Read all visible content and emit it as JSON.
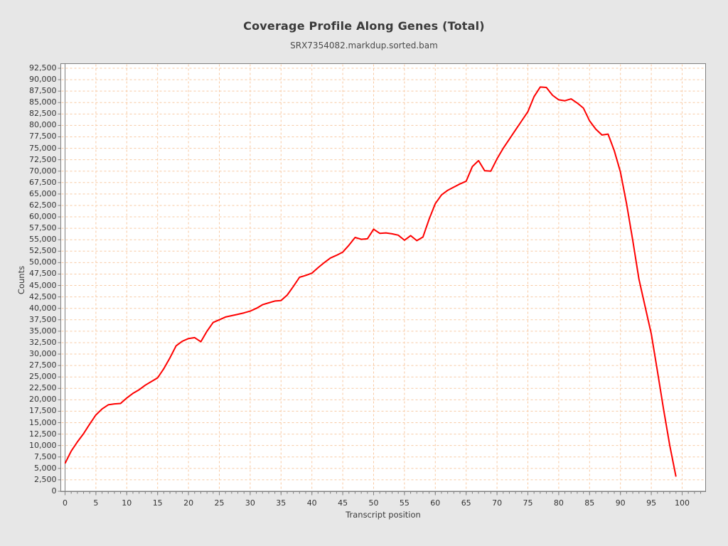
{
  "header": {
    "title": "Coverage Profile Along Genes (Total)",
    "subtitle": "SRX7354082.markdup.sorted.bam"
  },
  "colors": {
    "page_background": "#e7e7e7",
    "plot_background": "#ffffff",
    "plot_border": "#7f7f7f",
    "grid": "#f8c9a2",
    "line": "#fe0000",
    "text": "#3a3a3a"
  },
  "chart_data": {
    "type": "line",
    "title": "Coverage Profile Along Genes (Total)",
    "subtitle": "SRX7354082.markdup.sorted.bam",
    "xlabel": "Transcript position",
    "ylabel": "Counts",
    "xlim": [
      0,
      104
    ],
    "ylim": [
      0,
      93500
    ],
    "grid": {
      "on": true,
      "style": "dashed",
      "color": "#f8c9a2"
    },
    "legend_position": "none",
    "x_ticks": [
      0,
      5,
      10,
      15,
      20,
      25,
      30,
      35,
      40,
      45,
      50,
      55,
      60,
      65,
      70,
      75,
      80,
      85,
      90,
      95,
      100
    ],
    "y_ticks": [
      0,
      2500,
      5000,
      7500,
      10000,
      12500,
      15000,
      17500,
      20000,
      22500,
      25000,
      27500,
      30000,
      32500,
      35000,
      37500,
      40000,
      42500,
      45000,
      47500,
      50000,
      52500,
      55000,
      57500,
      60000,
      62500,
      65000,
      67500,
      70000,
      72500,
      75000,
      77500,
      80000,
      82500,
      85000,
      87500,
      90000,
      92500
    ],
    "y_tick_labels": [
      "0",
      "2,500",
      "5,000",
      "7,500",
      "10,000",
      "12,500",
      "15,000",
      "17,500",
      "20,000",
      "22,500",
      "25,000",
      "27,500",
      "30,000",
      "32,500",
      "35,000",
      "37,500",
      "40,000",
      "42,500",
      "45,000",
      "47,500",
      "50,000",
      "52,500",
      "55,000",
      "57,500",
      "60,000",
      "62,500",
      "65,000",
      "67,500",
      "70,000",
      "72,500",
      "75,000",
      "77,500",
      "80,000",
      "82,500",
      "85,000",
      "87,500",
      "90,000",
      "92,500"
    ],
    "series": [
      {
        "name": "SRX7354082.markdup.sorted.bam",
        "color": "#fe0000",
        "x": [
          0,
          1,
          2,
          3,
          4,
          5,
          6,
          7,
          8,
          9,
          10,
          11,
          12,
          13,
          14,
          15,
          16,
          17,
          18,
          19,
          20,
          21,
          22,
          23,
          24,
          25,
          26,
          27,
          28,
          29,
          30,
          31,
          32,
          33,
          34,
          35,
          36,
          37,
          38,
          39,
          40,
          41,
          42,
          43,
          44,
          45,
          46,
          47,
          48,
          49,
          50,
          51,
          52,
          53,
          54,
          55,
          56,
          57,
          58,
          59,
          60,
          61,
          62,
          63,
          64,
          65,
          66,
          67,
          68,
          69,
          70,
          71,
          72,
          73,
          74,
          75,
          76,
          77,
          78,
          79,
          80,
          81,
          82,
          83,
          84,
          85,
          86,
          87,
          88,
          89,
          90,
          91,
          92,
          93,
          94,
          95,
          96,
          97,
          98,
          99
        ],
        "values": [
          6100,
          8800,
          10800,
          12600,
          14700,
          16700,
          18000,
          18900,
          19100,
          19200,
          20400,
          21400,
          22200,
          23200,
          24000,
          24800,
          26800,
          29200,
          31800,
          32800,
          33400,
          33600,
          32700,
          35000,
          36900,
          37500,
          38100,
          38400,
          38700,
          39000,
          39400,
          40000,
          40800,
          41200,
          41600,
          41700,
          42900,
          44800,
          46800,
          47200,
          47700,
          48900,
          50000,
          51000,
          51600,
          52300,
          53800,
          55500,
          55100,
          55200,
          57300,
          56400,
          56500,
          56300,
          56000,
          54900,
          55900,
          54800,
          55600,
          59500,
          62900,
          64800,
          65800,
          66500,
          67200,
          67800,
          71000,
          72300,
          70100,
          70000,
          72700,
          75000,
          77000,
          79000,
          81000,
          83000,
          86300,
          88400,
          88300,
          86600,
          85600,
          85400,
          85800,
          84900,
          83800,
          81000,
          79200,
          77900,
          78100,
          74500,
          69800,
          62800,
          54800,
          46400,
          40400,
          34400,
          26200,
          17800,
          10000,
          3200
        ]
      }
    ]
  }
}
